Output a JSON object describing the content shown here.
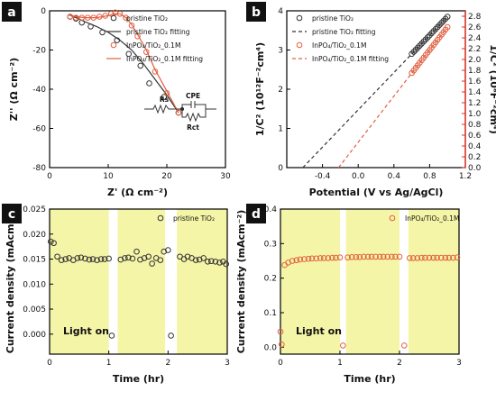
{
  "chart_data": [
    {
      "panel": "a",
      "type": "scatter",
      "xlabel": "Z' (Ω cm⁻²)",
      "ylabel": "Z'' (Ω cm⁻²)",
      "xlim": [
        0,
        30
      ],
      "ylim": [
        -80,
        0
      ],
      "xticks": [
        0,
        10,
        20,
        30
      ],
      "yticks": [
        -80,
        -60,
        -40,
        -20,
        0
      ],
      "legend_position": "top-right",
      "series": [
        {
          "name": "pristine TiO₂",
          "color": "#333333",
          "kind": "marker",
          "x": [
            3.5,
            4.5,
            5.5,
            7.0,
            9.0,
            11.5,
            13.5,
            15.5,
            17.0,
            19.5,
            22.0
          ],
          "y": [
            -3,
            -4,
            -6,
            -8,
            -11,
            -15,
            -22,
            -28,
            -37,
            -44,
            -52
          ]
        },
        {
          "name": "pristine TiO₂ fitting",
          "color": "#333333",
          "kind": "line",
          "x": [
            3.2,
            4.5,
            6,
            8,
            10,
            12,
            14,
            16,
            18,
            20,
            22
          ],
          "y": [
            -2,
            -3.5,
            -5.5,
            -8,
            -11,
            -15,
            -20,
            -27,
            -35,
            -43,
            -52
          ]
        },
        {
          "name": "InPO₄/TiO₂_0.1M",
          "color": "#e06040",
          "kind": "marker",
          "x": [
            3.5,
            4.5,
            5.5,
            6.5,
            7.5,
            8.5,
            9.5,
            10.5,
            11.2,
            12.0,
            13.0,
            14.0,
            15.0,
            16.5,
            18.0,
            20.0,
            22.0
          ],
          "y": [
            -3,
            -3.5,
            -3.5,
            -3.5,
            -3.5,
            -3,
            -2.5,
            -1.5,
            -0.8,
            -1.5,
            -3.5,
            -7.5,
            -13,
            -21,
            -31,
            -42,
            -52
          ]
        },
        {
          "name": "InPO₄/TiO₂_0.1M fitting",
          "color": "#e06040",
          "kind": "line",
          "x": [
            3.2,
            4.5,
            6,
            8,
            10,
            11,
            12,
            13,
            14,
            15,
            16.5,
            18,
            20,
            22
          ],
          "y": [
            -2,
            -3,
            -3.5,
            -3.5,
            -2.5,
            -1.5,
            -1.5,
            -3.5,
            -7,
            -12,
            -20,
            -30,
            -41,
            -52
          ]
        }
      ],
      "inset": {
        "r1": "Rs",
        "cpe": "CPE",
        "r2": "Rct"
      }
    },
    {
      "panel": "b",
      "type": "line",
      "xlabel": "Potential (V vs Ag/AgCl)",
      "ylabel": "1/C² (10¹²F⁻²cm⁴)",
      "ylabel_right": "1/C² (10⁸F⁻²cm⁴)",
      "xlim": [
        -0.8,
        1.2
      ],
      "ylim": [
        0,
        4
      ],
      "ylim_right": [
        0,
        2.9
      ],
      "xticks": [
        -0.4,
        0.0,
        0.4,
        0.8,
        1.2
      ],
      "yticks": [
        0,
        1,
        2,
        3,
        4
      ],
      "yticks_right": [
        0.0,
        0.2,
        0.4,
        0.6,
        0.8,
        1.0,
        1.2,
        1.4,
        1.6,
        1.8,
        2.0,
        2.2,
        2.4,
        2.6,
        2.8
      ],
      "legend_position": "top-left",
      "series": [
        {
          "name": "pristine TiO₂",
          "color": "#333333",
          "kind": "marker",
          "axis": "left",
          "x": [
            0.6,
            1.0
          ],
          "y": [
            2.9,
            3.85
          ]
        },
        {
          "name": "pristine TiO₂ fitting",
          "color": "#333333",
          "kind": "dashed",
          "axis": "left",
          "x": [
            -0.62,
            1.0
          ],
          "y": [
            0,
            3.85
          ]
        },
        {
          "name": "InPO₄/TiO₂_0.1M",
          "color": "#e06040",
          "kind": "marker",
          "axis": "right",
          "x": [
            0.6,
            1.0
          ],
          "y": [
            1.75,
            2.6
          ]
        },
        {
          "name": "InPO₄/TiO₂_0.1M fitting",
          "color": "#e06040",
          "kind": "dashed",
          "axis": "right",
          "x": [
            -0.22,
            1.0
          ],
          "y": [
            0,
            2.6
          ]
        }
      ]
    },
    {
      "panel": "c",
      "type": "scatter",
      "xlabel": "Time (hr)",
      "ylabel": "Current density (mAcm⁻²)",
      "xlim": [
        0,
        3
      ],
      "ylim": [
        -0.004,
        0.025
      ],
      "xticks": [
        0,
        1,
        2,
        3
      ],
      "yticks": [
        0.0,
        0.005,
        0.01,
        0.015,
        0.02,
        0.025
      ],
      "light_on": [
        [
          0,
          1.0
        ],
        [
          1.15,
          1.95
        ],
        [
          2.15,
          3.0
        ]
      ],
      "annotation": "Light on",
      "series": [
        {
          "name": "pristine TiO₂",
          "color": "#333333",
          "x": [
            0.02,
            0.07,
            0.13,
            0.2,
            0.27,
            0.33,
            0.4,
            0.47,
            0.53,
            0.6,
            0.67,
            0.73,
            0.8,
            0.87,
            0.93,
            1.0,
            1.05,
            1.2,
            1.27,
            1.33,
            1.4,
            1.47,
            1.53,
            1.6,
            1.67,
            1.73,
            1.8,
            1.87,
            1.93,
            2.0,
            2.05,
            2.2,
            2.27,
            2.33,
            2.4,
            2.47,
            2.53,
            2.6,
            2.67,
            2.73,
            2.8,
            2.87,
            2.93,
            2.98
          ],
          "y": [
            0.0185,
            0.0182,
            0.0155,
            0.0148,
            0.015,
            0.0152,
            0.0148,
            0.0152,
            0.0153,
            0.0151,
            0.0149,
            0.015,
            0.0148,
            0.015,
            0.015,
            0.0151,
            -0.0003,
            0.0149,
            0.0152,
            0.0153,
            0.0151,
            0.0165,
            0.0149,
            0.0152,
            0.0155,
            0.0141,
            0.0152,
            0.0148,
            0.0165,
            0.0168,
            -0.0003,
            0.0155,
            0.015,
            0.0155,
            0.0152,
            0.0148,
            0.0149,
            0.0152,
            0.0145,
            0.0146,
            0.0145,
            0.0143,
            0.0145,
            0.014
          ]
        }
      ]
    },
    {
      "panel": "d",
      "type": "scatter",
      "xlabel": "Time (hr)",
      "ylabel": "Current density (mAcm⁻²)",
      "xlim": [
        0,
        3
      ],
      "ylim": [
        -0.02,
        0.4
      ],
      "xticks": [
        0,
        1,
        2,
        3
      ],
      "yticks": [
        0.0,
        0.1,
        0.2,
        0.3,
        0.4
      ],
      "light_on": [
        [
          0,
          1.0
        ],
        [
          1.1,
          2.0
        ],
        [
          2.15,
          3.0
        ]
      ],
      "annotation": "Light on",
      "series": [
        {
          "name": "InPO₄/TiO₂_0.1M",
          "color": "#e06040",
          "x": [
            0.0,
            0.02,
            0.07,
            0.13,
            0.2,
            0.27,
            0.33,
            0.4,
            0.47,
            0.53,
            0.6,
            0.67,
            0.73,
            0.8,
            0.87,
            0.93,
            1.0,
            1.05,
            1.13,
            1.2,
            1.27,
            1.33,
            1.4,
            1.47,
            1.53,
            1.6,
            1.67,
            1.73,
            1.8,
            1.87,
            1.93,
            2.0,
            2.08,
            2.17,
            2.23,
            2.3,
            2.37,
            2.43,
            2.5,
            2.57,
            2.63,
            2.7,
            2.77,
            2.83,
            2.9,
            2.97
          ],
          "y": [
            0.045,
            0.008,
            0.238,
            0.245,
            0.25,
            0.252,
            0.254,
            0.255,
            0.256,
            0.257,
            0.257,
            0.258,
            0.258,
            0.258,
            0.259,
            0.259,
            0.26,
            0.005,
            0.26,
            0.261,
            0.261,
            0.261,
            0.262,
            0.262,
            0.262,
            0.262,
            0.262,
            0.262,
            0.262,
            0.262,
            0.262,
            0.262,
            0.005,
            0.258,
            0.258,
            0.258,
            0.259,
            0.259,
            0.259,
            0.259,
            0.259,
            0.259,
            0.259,
            0.259,
            0.259,
            0.26
          ]
        }
      ]
    }
  ]
}
